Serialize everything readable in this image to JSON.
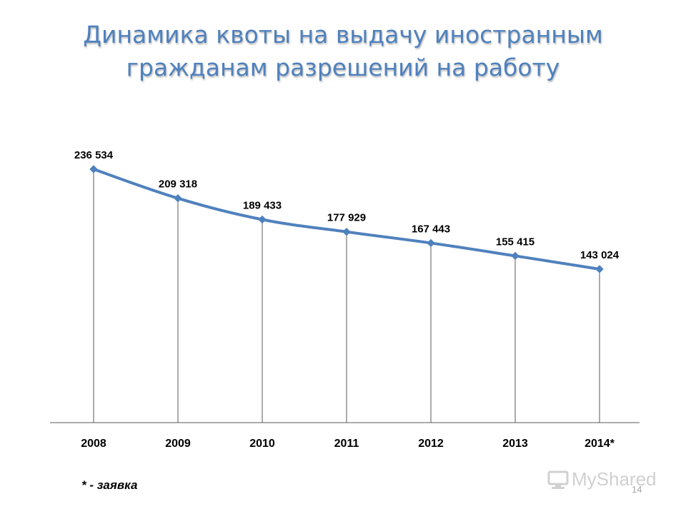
{
  "slide": {
    "title_line1": "Динамика квоты на выдачу иностранным",
    "title_line2": "гражданам разрешений на работу",
    "footnote": "* - заявка",
    "page_number": "14",
    "logo_text": "MyShared",
    "accent_color": "#4f81bd"
  },
  "chart_data": {
    "type": "line",
    "categories": [
      "2008",
      "2009",
      "2010",
      "2011",
      "2012",
      "2013",
      "2014*"
    ],
    "series": [
      {
        "values": [
          236534,
          209318,
          189433,
          177929,
          167443,
          155415,
          143024
        ],
        "color": "#4f81bd"
      }
    ],
    "data_labels": [
      "236 534",
      "209 318",
      "189 433",
      "177 929",
      "167 443",
      "155 415",
      "143 024"
    ],
    "drop_lines": true,
    "grid": false,
    "legend": "none"
  }
}
